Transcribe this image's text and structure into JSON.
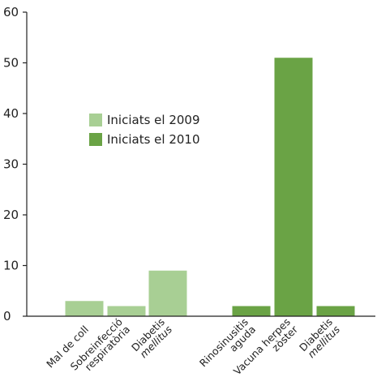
{
  "chart_data": {
    "type": "bar",
    "title": "",
    "xlabel": "",
    "ylabel": "",
    "ylim": [
      0,
      60
    ],
    "yticks": [
      0,
      10,
      20,
      30,
      40,
      50,
      60
    ],
    "grid": false,
    "legend_position": "center-left",
    "categories": [
      {
        "lines": [
          "Mal de coll"
        ],
        "italic_line": null
      },
      {
        "lines": [
          "Sobreinfecció",
          "respiratòria"
        ],
        "italic_line": null
      },
      {
        "lines": [
          "Diabetis",
          "mellitus"
        ],
        "italic_line": 1
      },
      {
        "lines": [
          "Rinosinusitis",
          "aguda"
        ],
        "italic_line": null
      },
      {
        "lines": [
          "Vacuna herpes",
          "zòster"
        ],
        "italic_line": null
      },
      {
        "lines": [
          "Diabetis",
          "mellitus"
        ],
        "italic_line": 1
      }
    ],
    "series": [
      {
        "name": "Iniciats el 2009",
        "color": "#a8cf94",
        "values": [
          3,
          2,
          9,
          null,
          null,
          null
        ]
      },
      {
        "name": "Iniciats el 2010",
        "color": "#6aa345",
        "values": [
          null,
          null,
          null,
          2,
          51,
          2
        ]
      }
    ]
  }
}
